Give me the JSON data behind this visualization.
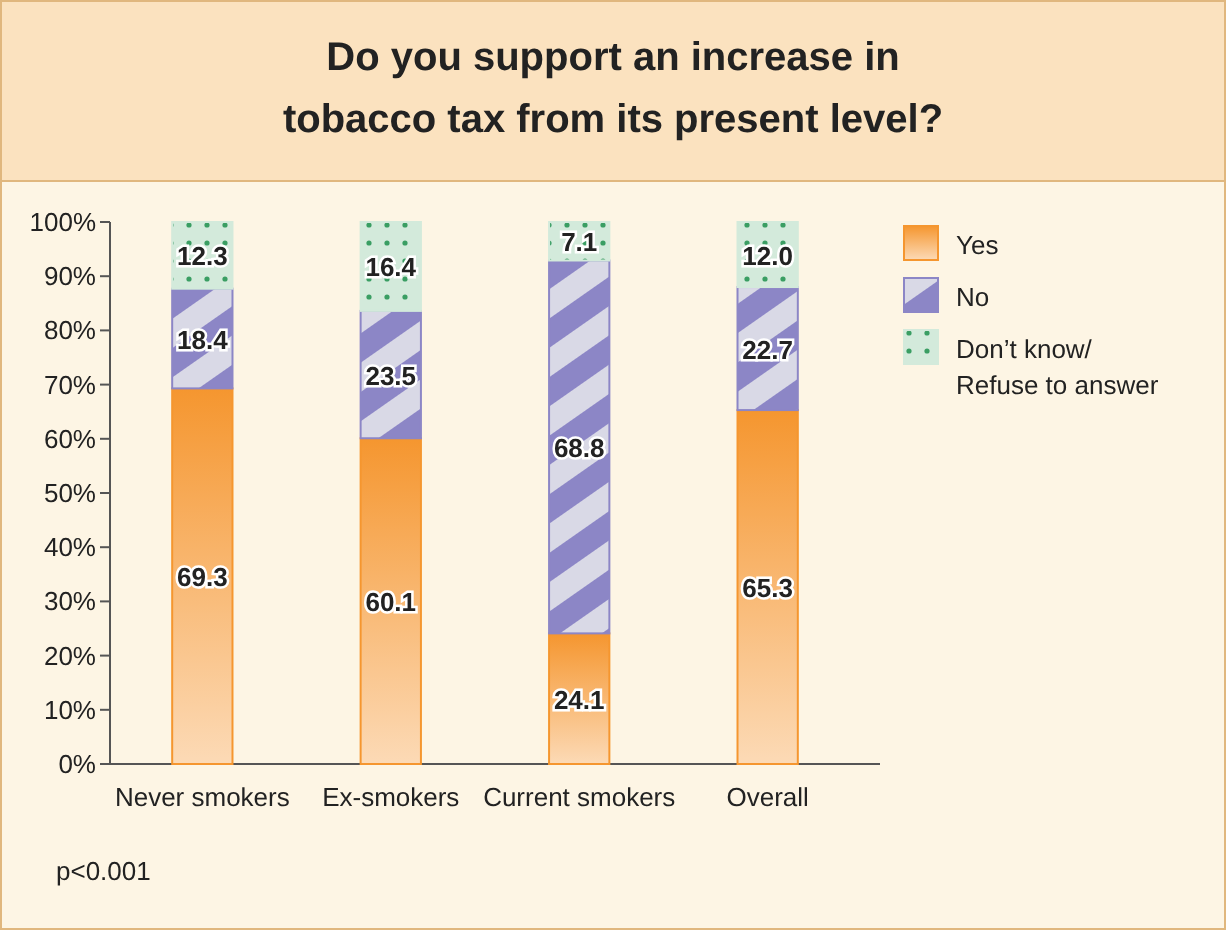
{
  "chart_data": {
    "type": "bar",
    "stacked": true,
    "title": "Do you support an increase in\ntobacco tax from its present level?",
    "categories": [
      "Never smokers",
      "Ex-smokers",
      "Current smokers",
      "Overall"
    ],
    "series": [
      {
        "name": "Yes",
        "color": "#f5962f",
        "values": [
          69.3,
          60.1,
          24.1,
          65.3
        ],
        "value_labels": [
          "69.3",
          "60.1",
          "24.1",
          "65.3"
        ]
      },
      {
        "name": "No",
        "color": "#8c86c6",
        "values": [
          18.4,
          23.5,
          68.8,
          22.7
        ],
        "value_labels": [
          "18.4",
          "23.5",
          "68.8",
          "22.7"
        ]
      },
      {
        "name": "Don’t know/\nRefuse to answer",
        "color": "#d3eadb",
        "values": [
          12.3,
          16.4,
          7.1,
          12.0
        ],
        "value_labels": [
          "12.3",
          "16.4",
          "7.1",
          "12.0"
        ]
      }
    ],
    "ylim": [
      0,
      100
    ],
    "yticks": [
      {
        "value": 0,
        "label": "0%"
      },
      {
        "value": 10,
        "label": "10%"
      },
      {
        "value": 20,
        "label": "20%"
      },
      {
        "value": 30,
        "label": "30%"
      },
      {
        "value": 40,
        "label": "40%"
      },
      {
        "value": 50,
        "label": "50%"
      },
      {
        "value": 60,
        "label": "60%"
      },
      {
        "value": 70,
        "label": "70%"
      },
      {
        "value": 80,
        "label": "80%"
      },
      {
        "value": 90,
        "label": "90%"
      },
      {
        "value": 100,
        "label": "100%"
      }
    ],
    "legend": "right",
    "annotations": [
      "p<0.001"
    ]
  }
}
